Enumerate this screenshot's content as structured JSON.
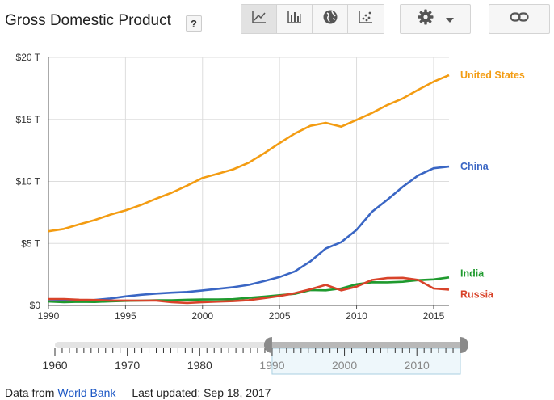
{
  "header": {
    "title": "Gross Domestic Product",
    "help_label": "?"
  },
  "toolbar": {
    "buttons": [
      {
        "icon": "line-chart-icon",
        "active": true
      },
      {
        "icon": "bar-chart-icon",
        "active": false
      },
      {
        "icon": "globe-icon",
        "active": false
      },
      {
        "icon": "scatter-plot-icon",
        "active": false
      }
    ],
    "settings_icon": "gear-icon",
    "dropdown_icon": "caret-down-icon",
    "link_icon": "link-icon"
  },
  "colors": {
    "United States": "#f39c12",
    "China": "#3a66c4",
    "India": "#1f9a2e",
    "Russia": "#d8432a",
    "grid": "#dddddd"
  },
  "chart_data": {
    "type": "line",
    "title": "Gross Domestic Product",
    "xlabel": "",
    "ylabel": "",
    "xlim": [
      1990,
      2016
    ],
    "ylim": [
      0,
      20
    ],
    "x_ticks": [
      1990,
      1995,
      2000,
      2005,
      2010,
      2015
    ],
    "x_tick_labels": [
      "1990",
      "1995",
      "2000",
      "2005",
      "2010",
      "2015"
    ],
    "y_ticks": [
      0,
      5,
      10,
      15,
      20
    ],
    "y_tick_labels": [
      "$0",
      "$5 T",
      "$10 T",
      "$15 T",
      "$20 T"
    ],
    "grid": true,
    "legend_placement": "right, inline at line ends",
    "x": [
      1990,
      1991,
      1992,
      1993,
      1994,
      1995,
      1996,
      1997,
      1998,
      1999,
      2000,
      2001,
      2002,
      2003,
      2004,
      2005,
      2006,
      2007,
      2008,
      2009,
      2010,
      2011,
      2012,
      2013,
      2014,
      2015,
      2016
    ],
    "series": [
      {
        "name": "United States",
        "values": [
          5.98,
          6.17,
          6.54,
          6.88,
          7.31,
          7.66,
          8.1,
          8.61,
          9.09,
          9.66,
          10.28,
          10.62,
          10.98,
          11.51,
          12.27,
          13.09,
          13.86,
          14.48,
          14.72,
          14.42,
          14.96,
          15.52,
          16.16,
          16.69,
          17.39,
          18.04,
          18.57
        ]
      },
      {
        "name": "China",
        "values": [
          0.36,
          0.38,
          0.43,
          0.44,
          0.56,
          0.73,
          0.86,
          0.96,
          1.03,
          1.09,
          1.21,
          1.34,
          1.47,
          1.66,
          1.96,
          2.29,
          2.75,
          3.55,
          4.59,
          5.1,
          6.09,
          7.55,
          8.53,
          9.57,
          10.48,
          11.06,
          11.2
        ]
      },
      {
        "name": "India",
        "values": [
          0.32,
          0.27,
          0.29,
          0.28,
          0.33,
          0.37,
          0.39,
          0.42,
          0.42,
          0.46,
          0.48,
          0.49,
          0.51,
          0.61,
          0.71,
          0.83,
          0.94,
          1.24,
          1.22,
          1.37,
          1.71,
          1.87,
          1.86,
          1.91,
          2.04,
          2.1,
          2.26
        ]
      },
      {
        "name": "Russia",
        "values": [
          0.52,
          0.52,
          0.46,
          0.44,
          0.4,
          0.4,
          0.39,
          0.4,
          0.27,
          0.2,
          0.26,
          0.31,
          0.35,
          0.43,
          0.59,
          0.76,
          0.99,
          1.3,
          1.66,
          1.22,
          1.52,
          2.05,
          2.21,
          2.23,
          2.06,
          1.37,
          1.28
        ]
      }
    ]
  },
  "timeline": {
    "labels": [
      "1960",
      "1970",
      "1980",
      "1990",
      "2000",
      "2010"
    ],
    "start_year": 1960,
    "end_year": 2016,
    "selected": [
      1990,
      2016
    ]
  },
  "footer": {
    "prefix": "Data from",
    "source": "World Bank",
    "updated": "Last updated: Sep 18, 2017"
  }
}
